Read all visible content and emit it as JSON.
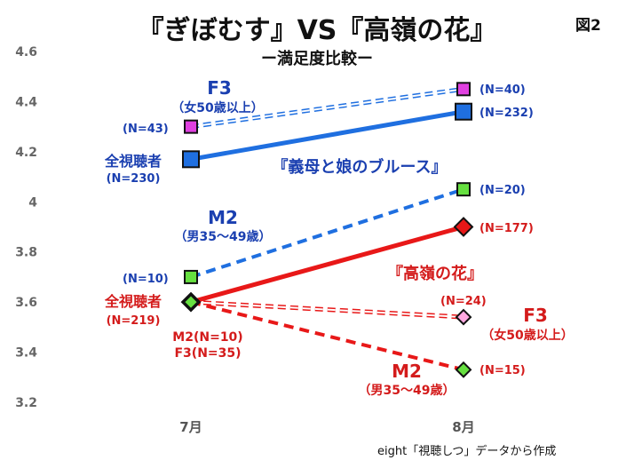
{
  "figure_label": "図2",
  "title": "『ぎぼむす』VS『高嶺の花』",
  "subtitle": "ー満足度比較ー",
  "source_note": "eight「視聴しつ」データから作成",
  "chart_data": {
    "type": "line",
    "categories": [
      "7月",
      "8月"
    ],
    "ylim": [
      3.2,
      4.6
    ],
    "yticks": [
      "3.2",
      "3.4",
      "3.6",
      "3.8",
      "4",
      "4.2",
      "4.4",
      "4.6"
    ],
    "grid": false,
    "legend": "none",
    "series": [
      {
        "id": "gibo_f3",
        "program": "『義母と娘のブルース』",
        "values": [
          4.3,
          4.45
        ],
        "n": [
          "(N=43)",
          "(N=40)"
        ],
        "color": "#1f6fe0",
        "marker_fill": "#e040e0",
        "marker": "square",
        "style": "dashed-thin"
      },
      {
        "id": "gibo_all",
        "program": "『義母と娘のブルース』",
        "values": [
          4.17,
          4.36
        ],
        "n": [
          "",
          "(N=232)"
        ],
        "color": "#1f6fe0",
        "marker_fill": "#1f6fe0",
        "marker": "square",
        "style": "solid"
      },
      {
        "id": "gibo_m2",
        "program": "『義母と娘のブルース』",
        "values": [
          3.7,
          4.05
        ],
        "n": [
          "(N=10)",
          "(N=20)"
        ],
        "color": "#1f6fe0",
        "marker_fill": "#66e040",
        "marker": "square",
        "style": "dashed"
      },
      {
        "id": "takane_all",
        "program": "『高嶺の花』",
        "values": [
          3.6,
          3.9
        ],
        "n": [
          "",
          "(N=177)"
        ],
        "color": "#e81818",
        "marker_fill": "#e81818",
        "marker": "diamond",
        "style": "solid"
      },
      {
        "id": "takane_f3",
        "program": "『高嶺の花』",
        "values": [
          3.6,
          3.54
        ],
        "n": [
          "",
          "(N=24)"
        ],
        "color": "#e81818",
        "marker_fill": "#ffa8e0",
        "marker": "diamond",
        "style": "dashed-thin"
      },
      {
        "id": "takane_m2",
        "program": "『高嶺の花』",
        "values": [
          3.6,
          3.33
        ],
        "n": [
          "",
          "(N=15)"
        ],
        "color": "#e81818",
        "marker_fill": "#66e040",
        "marker": "diamond",
        "style": "dashed"
      }
    ],
    "annotations": {
      "blue_f3": "F3",
      "blue_f3_sub": "（女50歳以上）",
      "blue_all": "全視聴者",
      "blue_all_n": "(N=230)",
      "blue_program": "『義母と娘のブルース』",
      "blue_m2": "M2",
      "blue_m2_sub": "（男35～49歳）",
      "red_program": "『高嶺の花』",
      "red_all": "全視聴者",
      "red_all_n": "(N=219)",
      "red_m2_7": "M2(N=10)",
      "red_f3_7": "F3(N=35)",
      "red_f3": "F3",
      "red_f3_sub": "（女50歳以上）",
      "red_m2": "M2",
      "red_m2_sub": "（男35～49歳）"
    }
  }
}
